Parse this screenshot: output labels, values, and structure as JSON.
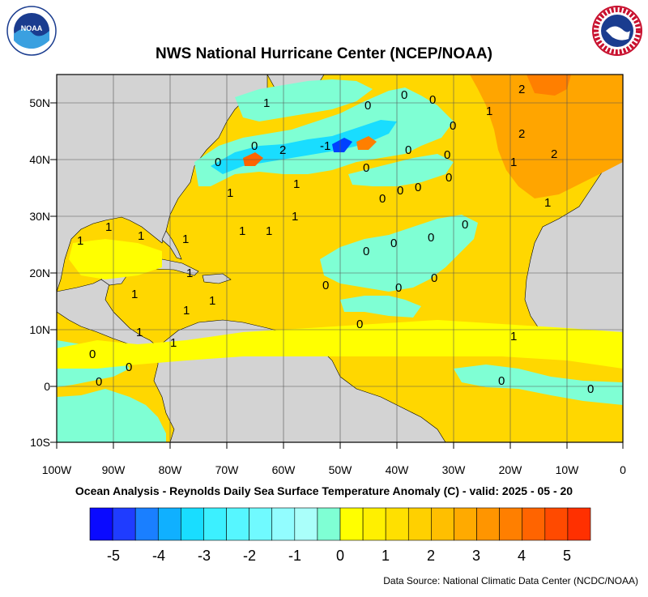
{
  "header": {
    "title": "NWS National Hurricane Center (NCEP/NOAA)"
  },
  "footer": {
    "subtitle": "Ocean Analysis - Reynolds Daily Sea Surface Temperature Anomaly (C) - valid: 2025 - 05 - 20",
    "source": "Data Source: National Climatic Data Center (NCDC/NOAA)"
  },
  "logos": {
    "left": {
      "text": "NOAA"
    },
    "right": {
      "text": "NATIONAL WEATHER SERVICE"
    }
  },
  "map": {
    "lat_labels": [
      "50N",
      "40N",
      "30N",
      "20N",
      "10N",
      "0",
      "10S"
    ],
    "lon_labels": [
      "100W",
      "90W",
      "80W",
      "70W",
      "60W",
      "50W",
      "40W",
      "30W",
      "20W",
      "10W",
      "0"
    ],
    "contour_labels": [
      "0",
      "1",
      "2",
      "-1"
    ],
    "colors": {
      "land": "#d3d3d3",
      "zero_band": "#ffff00",
      "warm_1": "#ffd700",
      "warm_2": "#ffa500",
      "cool_1": "#7fffd4",
      "cool_2": "#00bfff",
      "cool_3": "#0040ff"
    }
  },
  "colorbar": {
    "colors": [
      "#0a0aff",
      "#1f3cff",
      "#1a7fff",
      "#10b0ff",
      "#19ddff",
      "#3cf0ff",
      "#56f6ff",
      "#70faff",
      "#92fdff",
      "#aafffa",
      "#7fffd4",
      "#ffff00",
      "#fff000",
      "#ffe000",
      "#ffd000",
      "#ffbf00",
      "#ffaa00",
      "#ff9500",
      "#ff7f00",
      "#ff6400",
      "#ff4a00",
      "#ff3000"
    ],
    "ticks": [
      "-5",
      "-4",
      "-3",
      "-2",
      "-1",
      "0",
      "1",
      "2",
      "3",
      "4",
      "5"
    ]
  }
}
